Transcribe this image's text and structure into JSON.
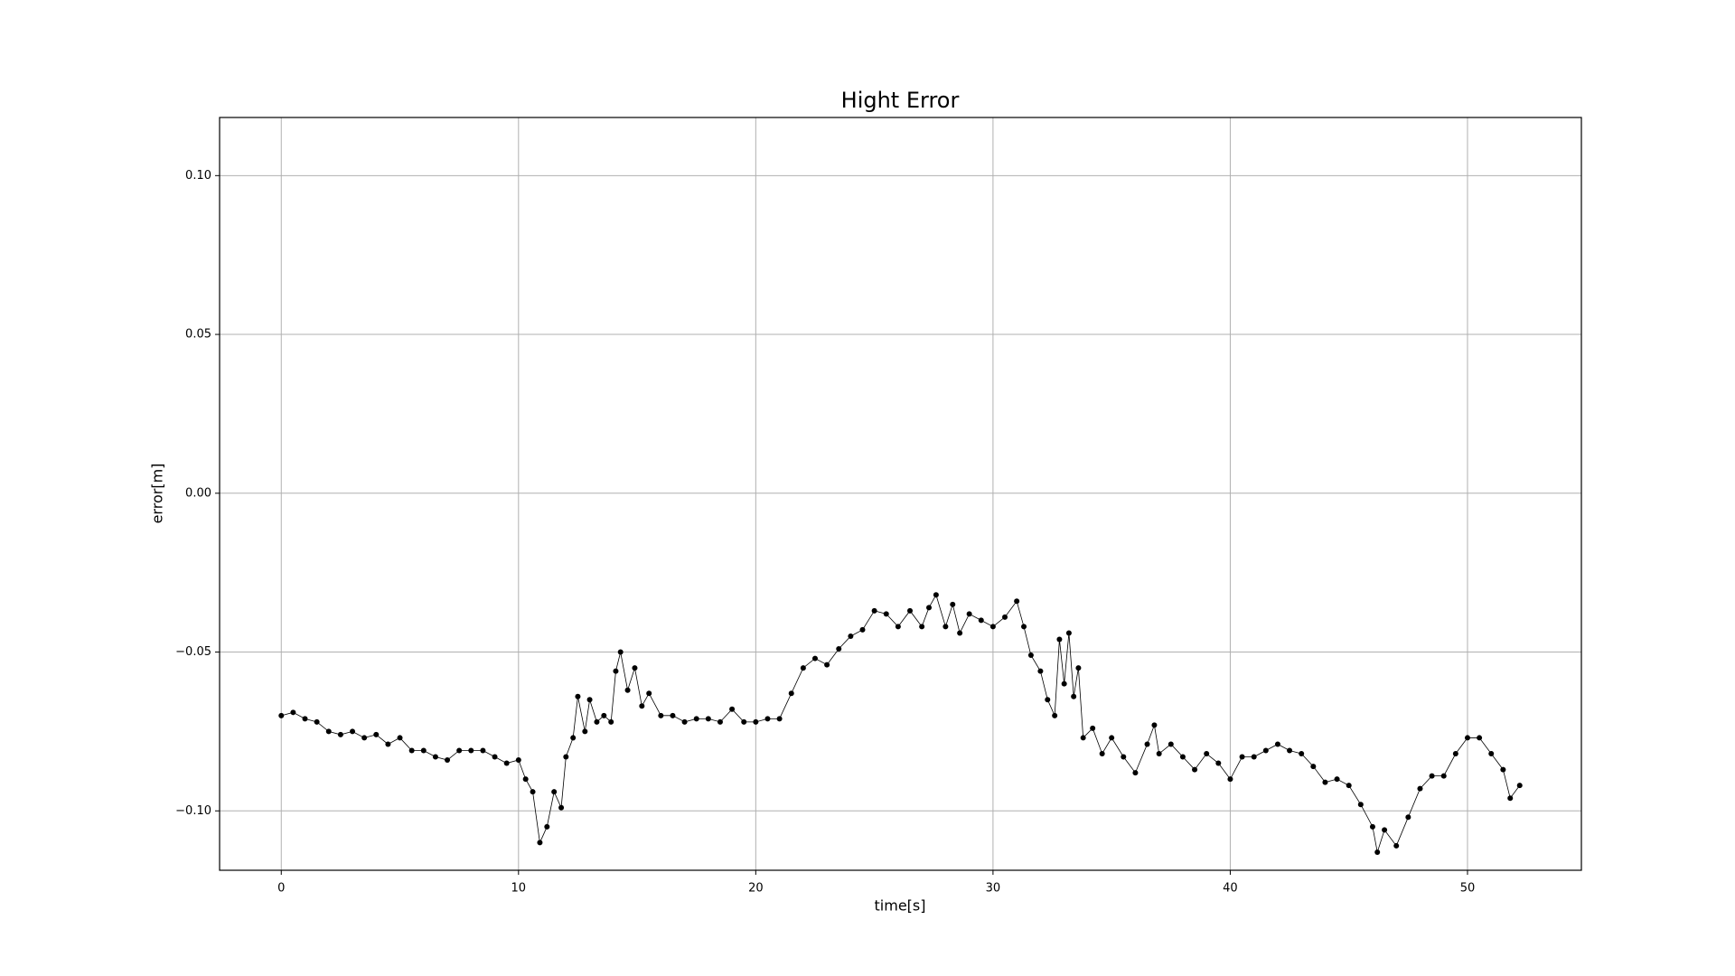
{
  "chart_data": {
    "type": "line",
    "title": "Hight Error",
    "xlabel": "time[s]",
    "ylabel": "error[m]",
    "x": [
      0,
      0.5,
      1,
      1.5,
      2,
      2.5,
      3,
      3.5,
      4,
      4.5,
      5,
      5.5,
      6,
      6.5,
      7,
      7.5,
      8,
      8.5,
      9,
      9.5,
      10,
      10.3,
      10.6,
      10.9,
      11.2,
      11.5,
      11.8,
      12,
      12.3,
      12.5,
      12.8,
      13,
      13.3,
      13.6,
      13.9,
      14.1,
      14.3,
      14.6,
      14.9,
      15.2,
      15.5,
      16,
      16.5,
      17,
      17.5,
      18,
      18.5,
      19,
      19.5,
      20,
      20.5,
      21,
      21.5,
      22,
      22.5,
      23,
      23.5,
      24,
      24.5,
      25,
      25.5,
      26,
      26.5,
      27,
      27.3,
      27.6,
      28,
      28.3,
      28.6,
      29,
      29.5,
      30,
      30.5,
      31,
      31.3,
      31.6,
      32,
      32.3,
      32.6,
      32.8,
      33,
      33.2,
      33.4,
      33.6,
      33.8,
      34.2,
      34.6,
      35,
      35.5,
      36,
      36.5,
      36.8,
      37,
      37.5,
      38,
      38.5,
      39,
      39.5,
      40,
      40.5,
      41,
      41.5,
      42,
      42.5,
      43,
      43.5,
      44,
      44.5,
      45,
      45.5,
      46,
      46.2,
      46.5,
      47,
      47.5,
      48,
      48.5,
      49,
      49.5,
      50,
      50.5,
      51,
      51.5,
      51.8,
      52.2
    ],
    "values": [
      -0.07,
      -0.069,
      -0.071,
      -0.072,
      -0.075,
      -0.076,
      -0.075,
      -0.077,
      -0.076,
      -0.079,
      -0.077,
      -0.081,
      -0.081,
      -0.083,
      -0.084,
      -0.081,
      -0.081,
      -0.081,
      -0.083,
      -0.085,
      -0.084,
      -0.09,
      -0.094,
      -0.11,
      -0.105,
      -0.094,
      -0.099,
      -0.083,
      -0.077,
      -0.064,
      -0.075,
      -0.065,
      -0.072,
      -0.07,
      -0.072,
      -0.056,
      -0.05,
      -0.062,
      -0.055,
      -0.067,
      -0.063,
      -0.07,
      -0.07,
      -0.072,
      -0.071,
      -0.071,
      -0.072,
      -0.068,
      -0.072,
      -0.072,
      -0.071,
      -0.071,
      -0.063,
      -0.055,
      -0.052,
      -0.054,
      -0.049,
      -0.045,
      -0.043,
      -0.037,
      -0.038,
      -0.042,
      -0.037,
      -0.042,
      -0.036,
      -0.032,
      -0.042,
      -0.035,
      -0.044,
      -0.038,
      -0.04,
      -0.042,
      -0.039,
      -0.034,
      -0.042,
      -0.051,
      -0.056,
      -0.065,
      -0.07,
      -0.046,
      -0.06,
      -0.044,
      -0.064,
      -0.055,
      -0.077,
      -0.074,
      -0.082,
      -0.077,
      -0.083,
      -0.088,
      -0.079,
      -0.073,
      -0.082,
      -0.079,
      -0.083,
      -0.087,
      -0.082,
      -0.085,
      -0.09,
      -0.083,
      -0.083,
      -0.081,
      -0.079,
      -0.081,
      -0.082,
      -0.086,
      -0.091,
      -0.09,
      -0.092,
      -0.098,
      -0.105,
      -0.113,
      -0.106,
      -0.111,
      -0.102,
      -0.093,
      -0.089,
      -0.089,
      -0.082,
      -0.077,
      -0.077,
      -0.082,
      -0.087,
      -0.096,
      -0.092
    ],
    "color": "#000000",
    "xlim": [
      -2.6,
      54.8
    ],
    "xticks": [
      0,
      10,
      20,
      30,
      40,
      50
    ],
    "ylim": [
      -0.1187,
      0.1183
    ],
    "yticks": [
      {
        "value": -0.1,
        "label": "−0.10"
      },
      {
        "value": -0.05,
        "label": "−0.05"
      },
      {
        "value": 0,
        "label": "0.00"
      },
      {
        "value": 0.05,
        "label": "0.05"
      },
      {
        "value": 0.1,
        "label": "0.10"
      }
    ],
    "grid": true
  }
}
